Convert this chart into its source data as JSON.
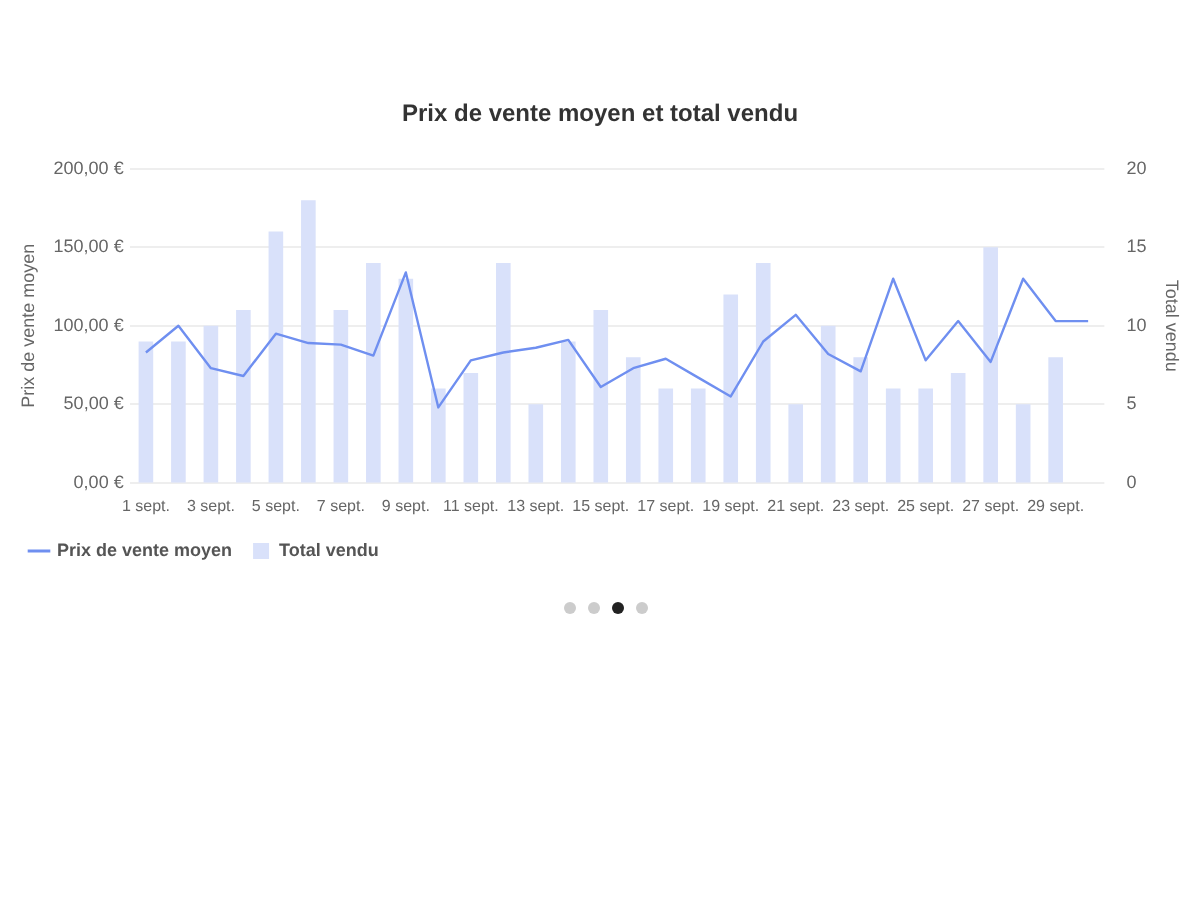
{
  "chart_data": {
    "type": "bar",
    "title": "Prix de vente moyen et total vendu",
    "ylabel": "Prix de vente moyen",
    "y2label": "Total vendu",
    "categories": [
      "1 sept.",
      null,
      "3 sept.",
      null,
      "5 sept.",
      null,
      "7 sept.",
      null,
      "9 sept.",
      null,
      "11 sept.",
      null,
      "13 sept.",
      null,
      "15 sept.",
      null,
      "17 sept.",
      null,
      "19 sept.",
      null,
      "21 sept.",
      null,
      "23 sept.",
      null,
      "25 sept.",
      null,
      "27 sept.",
      null,
      "29 sept.",
      null
    ],
    "series": [
      {
        "name": "Prix de vente moyen",
        "type": "line",
        "axis": "y",
        "color": "#6f8ff0",
        "values": [
          83,
          100,
          73,
          68,
          95,
          89,
          88,
          81,
          134,
          48,
          78,
          83,
          86,
          91,
          61,
          73,
          79,
          67,
          55,
          90,
          107,
          82,
          71,
          130,
          78,
          103,
          77,
          130,
          103,
          103
        ]
      },
      {
        "name": "Total vendu",
        "axis": "y2",
        "color": "#d9e1fa",
        "values": [
          9,
          9,
          10,
          11,
          16,
          18,
          11,
          14,
          13,
          6,
          7,
          14,
          5,
          9,
          11,
          8,
          6,
          6,
          12,
          14,
          5,
          10,
          8,
          6,
          6,
          7,
          15,
          5,
          8,
          null
        ]
      }
    ],
    "ylim": [
      0,
      200
    ],
    "yticks": [
      {
        "value": 0,
        "label": "0,00 €"
      },
      {
        "value": 50,
        "label": "50,00 €"
      },
      {
        "value": 100,
        "label": "100,00 €"
      },
      {
        "value": 150,
        "label": "150,00 €"
      },
      {
        "value": 200,
        "label": "200,00 €"
      }
    ],
    "y2lim": [
      0,
      20
    ],
    "y2ticks": [
      0,
      5,
      10,
      15,
      20
    ],
    "grid": "y",
    "legend": "bottom left",
    "marker": "none",
    "line_style": "solid"
  }
}
